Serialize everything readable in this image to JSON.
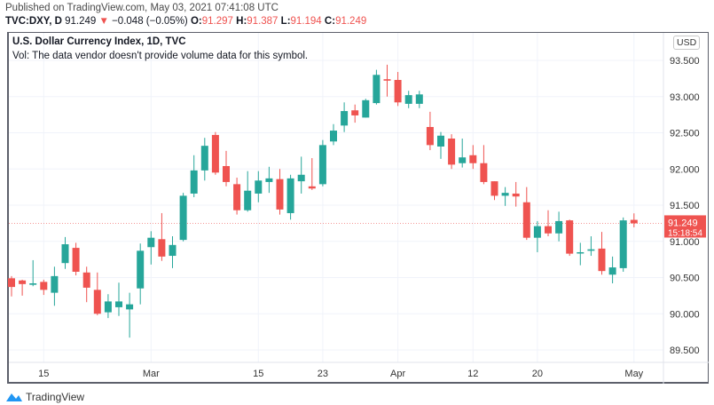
{
  "header": {
    "published": "Published on TradingView.com, May 03, 2021 07:41:08 UTC",
    "symbol": "TVC:DXY, D",
    "last": "91.249",
    "change": "−0.048 (−0.05%)",
    "o_label": "O:",
    "o": "91.297",
    "h_label": "H:",
    "h": "91.387",
    "l_label": "L:",
    "l": "91.194",
    "c_label": "C:",
    "c": "91.249",
    "down_icon": "triangle-down-icon"
  },
  "legend": {
    "title": "U.S. Dollar Currency Index, 1D, TVC",
    "volume_note": "Vol: The data vendor doesn't provide volume data for this symbol."
  },
  "currency": "USD",
  "price_badge": {
    "price": "91.249",
    "countdown": "15:18:54"
  },
  "footer": {
    "brand": "TradingView"
  },
  "colors": {
    "up": "#26a69a",
    "down": "#ef5350",
    "grid": "#f0f3fa"
  },
  "chart_data": {
    "type": "candlestick",
    "ylim": [
      89.3,
      93.75
    ],
    "y_ticks": [
      "93.500",
      "93.000",
      "92.500",
      "92.000",
      "91.500",
      "91.000",
      "90.500",
      "90.000",
      "89.500"
    ],
    "x_ticks": [
      {
        "label": "15",
        "at": 3
      },
      {
        "label": "Mar",
        "at": 13
      },
      {
        "label": "15",
        "at": 23
      },
      {
        "label": "23",
        "at": 29
      },
      {
        "label": "Apr",
        "at": 36
      },
      {
        "label": "12",
        "at": 43
      },
      {
        "label": "20",
        "at": 49
      },
      {
        "label": "May",
        "at": 58
      }
    ],
    "last_price_line": 91.249,
    "grid": true,
    "ohlc": [
      [
        90.49,
        90.52,
        90.24,
        90.37
      ],
      [
        90.46,
        90.47,
        90.25,
        90.41
      ],
      [
        90.4,
        90.74,
        90.38,
        90.42
      ],
      [
        90.44,
        90.47,
        90.26,
        90.33
      ],
      [
        90.29,
        90.65,
        90.11,
        90.52
      ],
      [
        90.7,
        91.06,
        90.62,
        90.96
      ],
      [
        90.91,
        90.98,
        90.53,
        90.58
      ],
      [
        90.57,
        90.65,
        90.16,
        90.36
      ],
      [
        90.33,
        90.57,
        89.98,
        90.0
      ],
      [
        90.02,
        90.27,
        89.94,
        90.17
      ],
      [
        90.09,
        90.43,
        89.97,
        90.17
      ],
      [
        90.06,
        90.29,
        89.67,
        90.13
      ],
      [
        90.35,
        90.97,
        90.13,
        90.87
      ],
      [
        90.92,
        91.14,
        90.68,
        91.05
      ],
      [
        91.03,
        91.39,
        90.73,
        90.79
      ],
      [
        90.8,
        91.07,
        90.63,
        90.95
      ],
      [
        91.02,
        91.67,
        91.0,
        91.63
      ],
      [
        91.66,
        92.19,
        91.61,
        91.98
      ],
      [
        91.98,
        92.43,
        91.84,
        92.32
      ],
      [
        92.47,
        92.51,
        91.92,
        91.95
      ],
      [
        92.04,
        92.25,
        91.76,
        91.82
      ],
      [
        91.79,
        91.88,
        91.37,
        91.43
      ],
      [
        91.43,
        91.97,
        91.41,
        91.7
      ],
      [
        91.66,
        91.97,
        91.54,
        91.84
      ],
      [
        91.82,
        92.03,
        91.67,
        91.87
      ],
      [
        91.86,
        92.0,
        91.37,
        91.44
      ],
      [
        91.39,
        91.92,
        91.3,
        91.87
      ],
      [
        91.83,
        92.17,
        91.66,
        91.92
      ],
      [
        91.76,
        92.15,
        91.71,
        91.73
      ],
      [
        91.79,
        92.4,
        91.76,
        92.33
      ],
      [
        92.38,
        92.62,
        92.33,
        92.53
      ],
      [
        92.6,
        92.92,
        92.51,
        92.8
      ],
      [
        92.81,
        92.89,
        92.64,
        92.74
      ],
      [
        92.71,
        92.97,
        92.71,
        92.95
      ],
      [
        92.91,
        93.37,
        92.89,
        93.3
      ],
      [
        93.24,
        93.44,
        93.0,
        93.22
      ],
      [
        93.23,
        93.34,
        92.87,
        92.92
      ],
      [
        92.9,
        93.08,
        92.84,
        93.02
      ],
      [
        92.9,
        93.08,
        92.84,
        93.03
      ],
      [
        92.58,
        92.79,
        92.26,
        92.33
      ],
      [
        92.31,
        92.51,
        92.14,
        92.46
      ],
      [
        92.42,
        92.48,
        92.0,
        92.06
      ],
      [
        92.08,
        92.42,
        92.02,
        92.16
      ],
      [
        92.19,
        92.33,
        92.0,
        92.08
      ],
      [
        92.08,
        92.33,
        91.79,
        91.82
      ],
      [
        91.83,
        91.83,
        91.57,
        91.63
      ],
      [
        91.63,
        91.75,
        91.49,
        91.67
      ],
      [
        91.66,
        91.82,
        91.48,
        91.62
      ],
      [
        91.54,
        91.75,
        91.02,
        91.05
      ],
      [
        91.05,
        91.28,
        90.85,
        91.21
      ],
      [
        91.21,
        91.43,
        91.07,
        91.11
      ],
      [
        91.11,
        91.41,
        91.0,
        91.28
      ],
      [
        91.29,
        91.3,
        90.8,
        90.83
      ],
      [
        90.84,
        90.98,
        90.67,
        90.85
      ],
      [
        90.87,
        91.07,
        90.8,
        90.89
      ],
      [
        90.9,
        91.13,
        90.54,
        90.59
      ],
      [
        90.54,
        90.79,
        90.42,
        90.64
      ],
      [
        90.63,
        91.33,
        90.58,
        91.29
      ],
      [
        91.297,
        91.387,
        91.194,
        91.249
      ]
    ]
  }
}
